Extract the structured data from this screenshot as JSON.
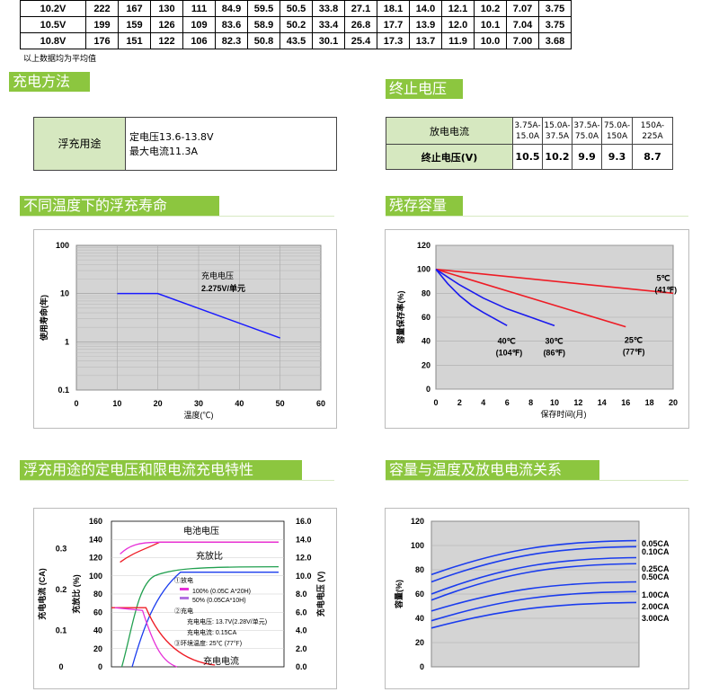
{
  "top_table": {
    "rows": [
      {
        "v": "10.2V",
        "cells": [
          "222",
          "167",
          "130",
          "111",
          "84.9",
          "59.5",
          "50.5",
          "33.8",
          "27.1",
          "18.1",
          "14.0",
          "12.1",
          "10.2",
          "7.07",
          "3.75"
        ]
      },
      {
        "v": "10.5V",
        "cells": [
          "199",
          "159",
          "126",
          "109",
          "83.6",
          "58.9",
          "50.2",
          "33.4",
          "26.8",
          "17.7",
          "13.9",
          "12.0",
          "10.1",
          "7.04",
          "3.75"
        ]
      },
      {
        "v": "10.8V",
        "cells": [
          "176",
          "151",
          "122",
          "106",
          "82.3",
          "50.8",
          "43.5",
          "30.1",
          "25.4",
          "17.3",
          "13.7",
          "11.9",
          "10.0",
          "7.00",
          "3.68"
        ]
      }
    ],
    "note": "以上数据均为平均值"
  },
  "sections": {
    "charge_method": "充电方法",
    "cutoff": "终止电压",
    "float_life": "不同温度下的浮充寿命",
    "capacity": "残存容量",
    "float_char": "浮充用途的定电压和限电流充电特性",
    "cap_temp": "容量与温度及放电电流关系"
  },
  "charge_method": {
    "label": "浮充用途",
    "line1": "定电压13.6-13.8V",
    "line2": "最大电流11.3A"
  },
  "cutoff_table": {
    "row1_label": "放电电流",
    "row2_label": "终止电压(V)",
    "currents": [
      "3.75A-15.0A",
      "15.0A-37.5A",
      "37.5A-75.0A",
      "75.0A-150A",
      "150A-225A"
    ],
    "voltages": [
      "10.5",
      "10.2",
      "9.9",
      "9.3",
      "8.7"
    ]
  },
  "chart_data": [
    {
      "type": "line",
      "ylabel": "使用寿命(年)",
      "xlabel": "温度(℃)",
      "yscale": "log",
      "xlim": [
        0,
        60
      ],
      "ylim": [
        0.1,
        100
      ],
      "xticks": [
        "0",
        "10",
        "20",
        "30",
        "40",
        "50",
        "60"
      ],
      "yticks": [
        "100",
        "10",
        "1",
        "0.1"
      ],
      "annotation": [
        "充电电压",
        "2.275V/单元"
      ],
      "series": [
        {
          "x": [
            10,
            20,
            50
          ],
          "y": [
            10,
            10,
            1.2
          ],
          "color": "#1a1aff"
        }
      ]
    },
    {
      "type": "line",
      "ylabel": "容量保存率(%)",
      "xlabel": "保存时间(月)",
      "xlim": [
        0,
        20
      ],
      "ylim": [
        0,
        120
      ],
      "xticks": [
        "0",
        "2",
        "4",
        "6",
        "8",
        "10",
        "12",
        "14",
        "16",
        "18",
        "20"
      ],
      "yticks": [
        "120",
        "100",
        "80",
        "60",
        "40",
        "20",
        "0"
      ],
      "series": [
        {
          "name": "5℃ (41℉)",
          "color": "#ee1c25",
          "x": [
            0,
            20
          ],
          "y": [
            100,
            80
          ]
        },
        {
          "name": "25℃ (77℉)",
          "color": "#ee1c25",
          "x": [
            0,
            16
          ],
          "y": [
            100,
            52
          ]
        },
        {
          "name": "30℃ (86℉)",
          "color": "#1a1aee",
          "x": [
            0,
            2,
            4,
            6,
            8,
            10
          ],
          "y": [
            100,
            87,
            76,
            67,
            60,
            53
          ]
        },
        {
          "name": "40℃ (104℉)",
          "color": "#1a1aee",
          "x": [
            0,
            1,
            2,
            3,
            4,
            6
          ],
          "y": [
            100,
            88,
            78,
            70,
            64,
            53
          ]
        }
      ]
    },
    {
      "type": "line",
      "left_labels": {
        "ca": "充电电流 (CA)",
        "ratio": "充放比 (%)"
      },
      "right_label": "充电电压 (V)",
      "ca_ticks": [
        "0.3",
        "0.2",
        "0.1",
        "0"
      ],
      "ratio_ticks": [
        "160",
        "140",
        "120",
        "100",
        "80",
        "60",
        "40",
        "20",
        "0"
      ],
      "volt_ticks": [
        "16.0",
        "14.0",
        "12.0",
        "10.0",
        "8.0",
        "6.0",
        "4.0",
        "2.0",
        "0.0"
      ],
      "curve_labels": {
        "voltage": "电池电压",
        "ratio": "充放比",
        "current": "充电电流"
      },
      "legend": [
        "①放电",
        "100% (0.05C A*20H)",
        "50% (0.05CA*10H)",
        "②充电",
        "充电电压: 13.7V(2.28V/单元)",
        "充电电流: 0.15CA",
        "③环境温度: 25℃ (77℉)"
      ]
    },
    {
      "type": "line",
      "ylabel": "容量(%)",
      "yticks": [
        "120",
        "100",
        "80",
        "60",
        "40",
        "20",
        "0"
      ],
      "ylim": [
        0,
        120
      ],
      "series": [
        {
          "name": "0.05CA",
          "y_start": 76,
          "y_end": 104
        },
        {
          "name": "0.10CA",
          "y_start": 70,
          "y_end": 99
        },
        {
          "name": "0.25CA",
          "y_start": 60,
          "y_end": 90
        },
        {
          "name": "0.50CA",
          "y_start": 55,
          "y_end": 85
        },
        {
          "name": "1.00CA",
          "y_start": 46,
          "y_end": 70
        },
        {
          "name": "2.00CA",
          "y_start": 38,
          "y_end": 62
        },
        {
          "name": "3.00CA",
          "y_start": 32,
          "y_end": 53
        }
      ]
    }
  ]
}
